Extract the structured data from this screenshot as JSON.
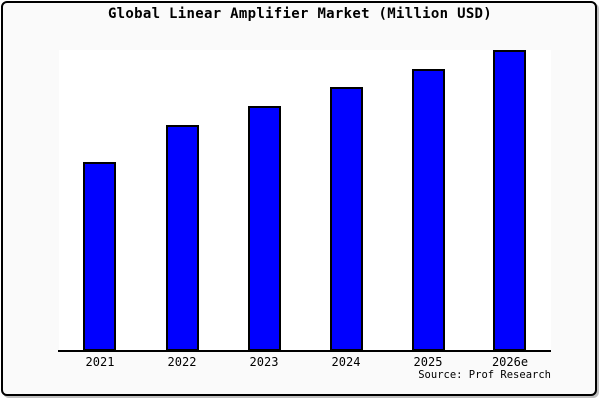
{
  "window": {
    "background_color": "#fafafa",
    "frame_border_color": "#000000",
    "plot_background_color": "#ffffff"
  },
  "chart_data": {
    "type": "bar",
    "title": "Global Linear Amplifier Market (Million USD)",
    "categories": [
      "2021",
      "2022",
      "2023",
      "2024",
      "2025",
      "2026e"
    ],
    "values": [
      62.8,
      75.1,
      81.4,
      87.7,
      93.7,
      100
    ],
    "xlabel": "",
    "ylabel": "",
    "ylim": [
      0,
      100
    ],
    "grid": false,
    "legend": false,
    "y_axis_ticks_visible": false,
    "bar_color": "#0000ff",
    "bar_border_color": "#000000"
  },
  "footer": {
    "source_label": "Source: Prof Research"
  }
}
